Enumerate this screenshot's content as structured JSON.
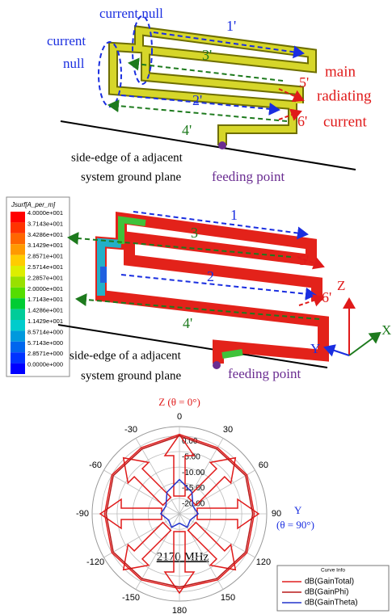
{
  "top_figure": {
    "current_null_top": "current null",
    "current_null_left": [
      "current",
      "null"
    ],
    "segment_labels": [
      "1'",
      "3'",
      "2'",
      "4'",
      "5'",
      "6'"
    ],
    "main_radiating_current": [
      "main",
      "radiating",
      "current"
    ],
    "ground_plane": [
      "side-edge of a adjacent",
      "system ground plane"
    ],
    "feeding_point": "feeding point"
  },
  "middle_figure": {
    "colorbar_title": "Jsurf[A_per_m]",
    "colorbar_labels": [
      "4.0000e+001",
      "3.7143e+001",
      "3.4286e+001",
      "3.1429e+001",
      "2.8571e+001",
      "2.5714e+001",
      "2.2857e+001",
      "2.0000e+001",
      "1.7143e+001",
      "1.4286e+001",
      "1.1429e+001",
      "8.5714e+000",
      "5.7143e+000",
      "2.8571e+000",
      "0.0000e+000"
    ],
    "segment_labels": [
      "1",
      "3",
      "2",
      "4'",
      "5'",
      "6'"
    ],
    "axes": [
      "Z",
      "X",
      "Y"
    ],
    "ground_plane": [
      "side-edge of a adjacent",
      "system ground plane"
    ],
    "feeding_point": "feeding point"
  },
  "chart_data": {
    "type": "polar",
    "title": "Z (θ = 0°)",
    "annotations": [
      "Y",
      "(θ = 90°)",
      "2170 MHz"
    ],
    "legend_title": "Curve Info",
    "legend": "lower right",
    "x": [
      -180,
      -150,
      -120,
      -90,
      -60,
      -30,
      0,
      30,
      60,
      90,
      120,
      150,
      180
    ],
    "xlim": [
      -180,
      180
    ],
    "xticks": [
      0,
      30,
      60,
      90,
      120,
      150,
      180,
      -150,
      -120,
      -90,
      -60,
      -30
    ],
    "ylim": [
      -25,
      3
    ],
    "yticks": [
      {
        "value": 0,
        "label": "0.00"
      },
      {
        "value": -5,
        "label": "-5.00"
      },
      {
        "value": -10,
        "label": "-10.00"
      },
      {
        "value": -15,
        "label": "-15.00"
      },
      {
        "value": -20,
        "label": "-20.00"
      }
    ],
    "series": [
      {
        "name": "dB(GainTotal)",
        "color": "#e01f1f",
        "values": [
          -1,
          -0.5,
          0,
          -1,
          0,
          -0.5,
          0.5,
          -0.5,
          0,
          -1,
          0,
          -0.5,
          -1
        ]
      },
      {
        "name": "dB(GainPhi)",
        "color": "#b81818",
        "values": [
          -1.5,
          -1,
          -0.5,
          -1.5,
          -0.5,
          -1,
          0,
          -1,
          -0.5,
          -1.5,
          -0.5,
          -1,
          -1.5
        ]
      },
      {
        "name": "dB(GainTheta)",
        "color": "#2233cc",
        "values": [
          -22,
          -20,
          -21,
          -19,
          -20,
          -17,
          -14,
          -17,
          -20,
          -19,
          -21,
          -20,
          -22
        ]
      }
    ]
  }
}
